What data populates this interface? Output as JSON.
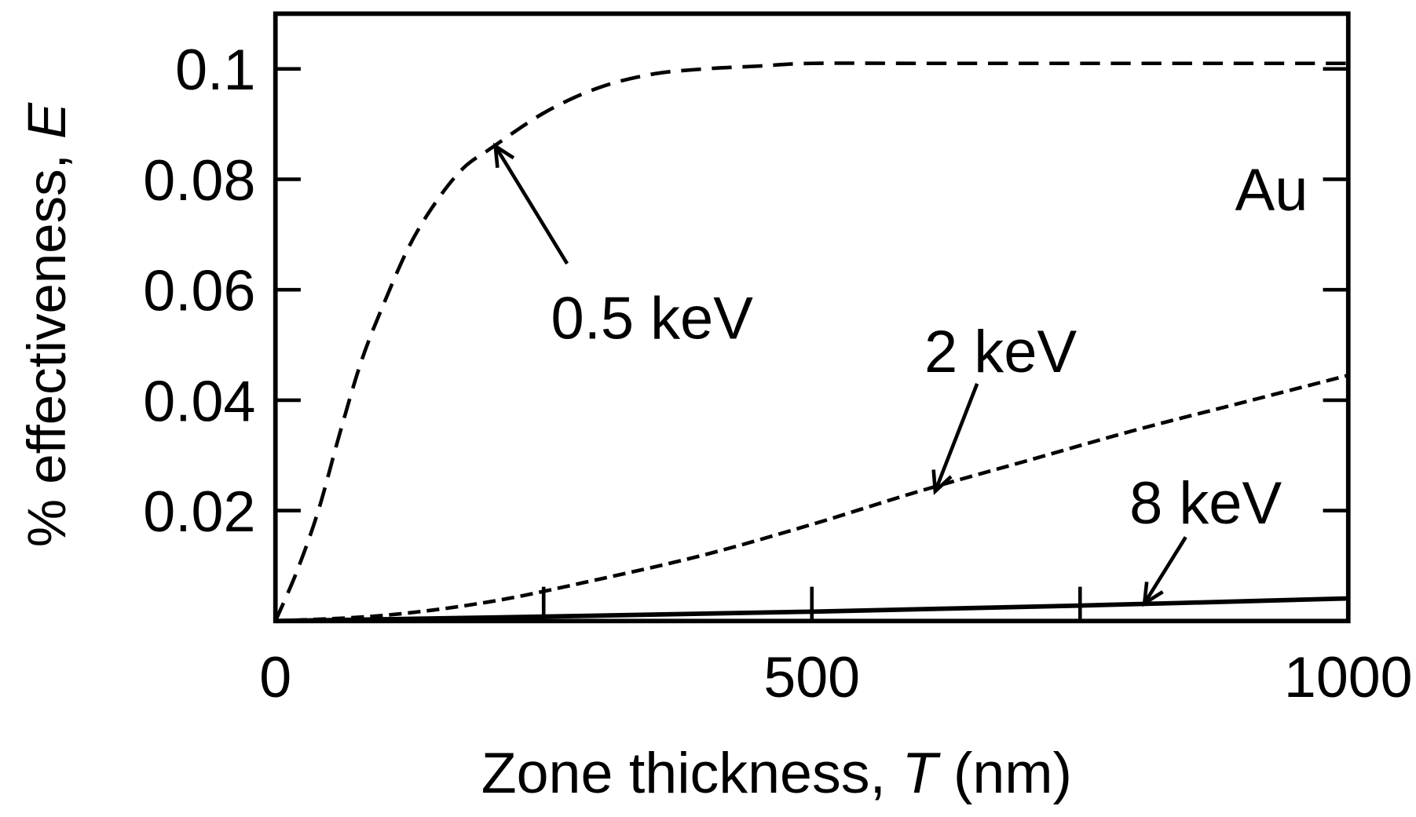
{
  "chart_data": {
    "type": "line",
    "title": "",
    "xlabel": "Zone thickness, ",
    "xlabel_italic": "T",
    "xlabel_unit": " (nm)",
    "ylabel": "% effectiveness, ",
    "ylabel_italic": "E",
    "xlim": [
      0,
      1000
    ],
    "ylim": [
      0,
      0.11
    ],
    "x_tick_labels": [
      "0",
      "500",
      "1000"
    ],
    "x_minor_ticks": [
      250,
      500,
      750
    ],
    "y_ticks": [
      0.02,
      0.04,
      0.06,
      0.08,
      0.1
    ],
    "y_tick_labels": [
      "0.02",
      "0.04",
      "0.06",
      "0.08",
      "0.1"
    ],
    "grid": false,
    "annotation": "Au",
    "series": [
      {
        "name": "0.5 keV",
        "style": "dashed",
        "x": [
          0,
          20,
          40,
          60,
          80,
          100,
          125,
          150,
          175,
          200,
          250,
          300,
          350,
          400,
          450,
          500,
          600,
          700,
          800,
          900,
          1000
        ],
        "y": [
          0,
          0.009,
          0.02,
          0.034,
          0.047,
          0.057,
          0.068,
          0.076,
          0.082,
          0.0855,
          0.092,
          0.0965,
          0.099,
          0.1,
          0.1005,
          0.101,
          0.101,
          0.101,
          0.101,
          0.101,
          0.101
        ],
        "arrow_to": [
          205,
          0.086
        ]
      },
      {
        "name": "2 keV",
        "style": "dashed",
        "x": [
          0,
          100,
          200,
          300,
          400,
          500,
          600,
          700,
          800,
          900,
          1000
        ],
        "y": [
          0,
          0.001,
          0.0035,
          0.0075,
          0.012,
          0.0175,
          0.0235,
          0.029,
          0.0345,
          0.0395,
          0.0445
        ],
        "arrow_to": [
          615,
          0.0235
        ]
      },
      {
        "name": "8 keV",
        "style": "solid",
        "x": [
          0,
          250,
          500,
          750,
          1000
        ],
        "y": [
          0,
          0.0008,
          0.0017,
          0.0028,
          0.0041
        ],
        "arrow_to": [
          810,
          0.0032
        ]
      }
    ]
  }
}
